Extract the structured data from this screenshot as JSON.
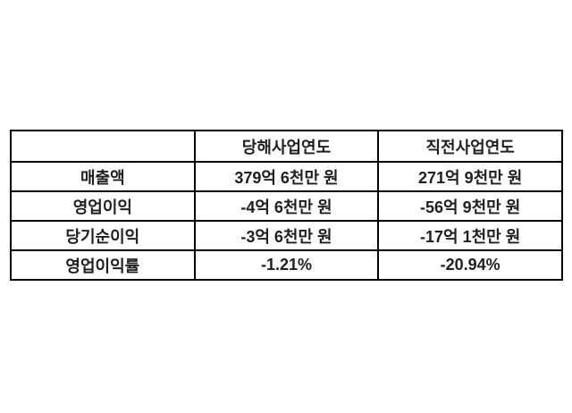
{
  "table": {
    "columns": [
      "",
      "당해사업연도",
      "직전사업연도"
    ],
    "rows": [
      {
        "label": "매출액",
        "current": "379억 6천만 원",
        "previous": "271억 9천만 원"
      },
      {
        "label": "영업이익",
        "current": "-4억 6천만 원",
        "previous": "-56억 9천만 원"
      },
      {
        "label": "당기순이익",
        "current": "-3억 6천만 원",
        "previous": "-17억 1천만 원"
      },
      {
        "label": "영업이익률",
        "current": "-1.21%",
        "previous": "-20.94%"
      }
    ]
  },
  "colors": {
    "background": "#ffffff",
    "border": "#000000",
    "text": "#1f1f1f"
  }
}
